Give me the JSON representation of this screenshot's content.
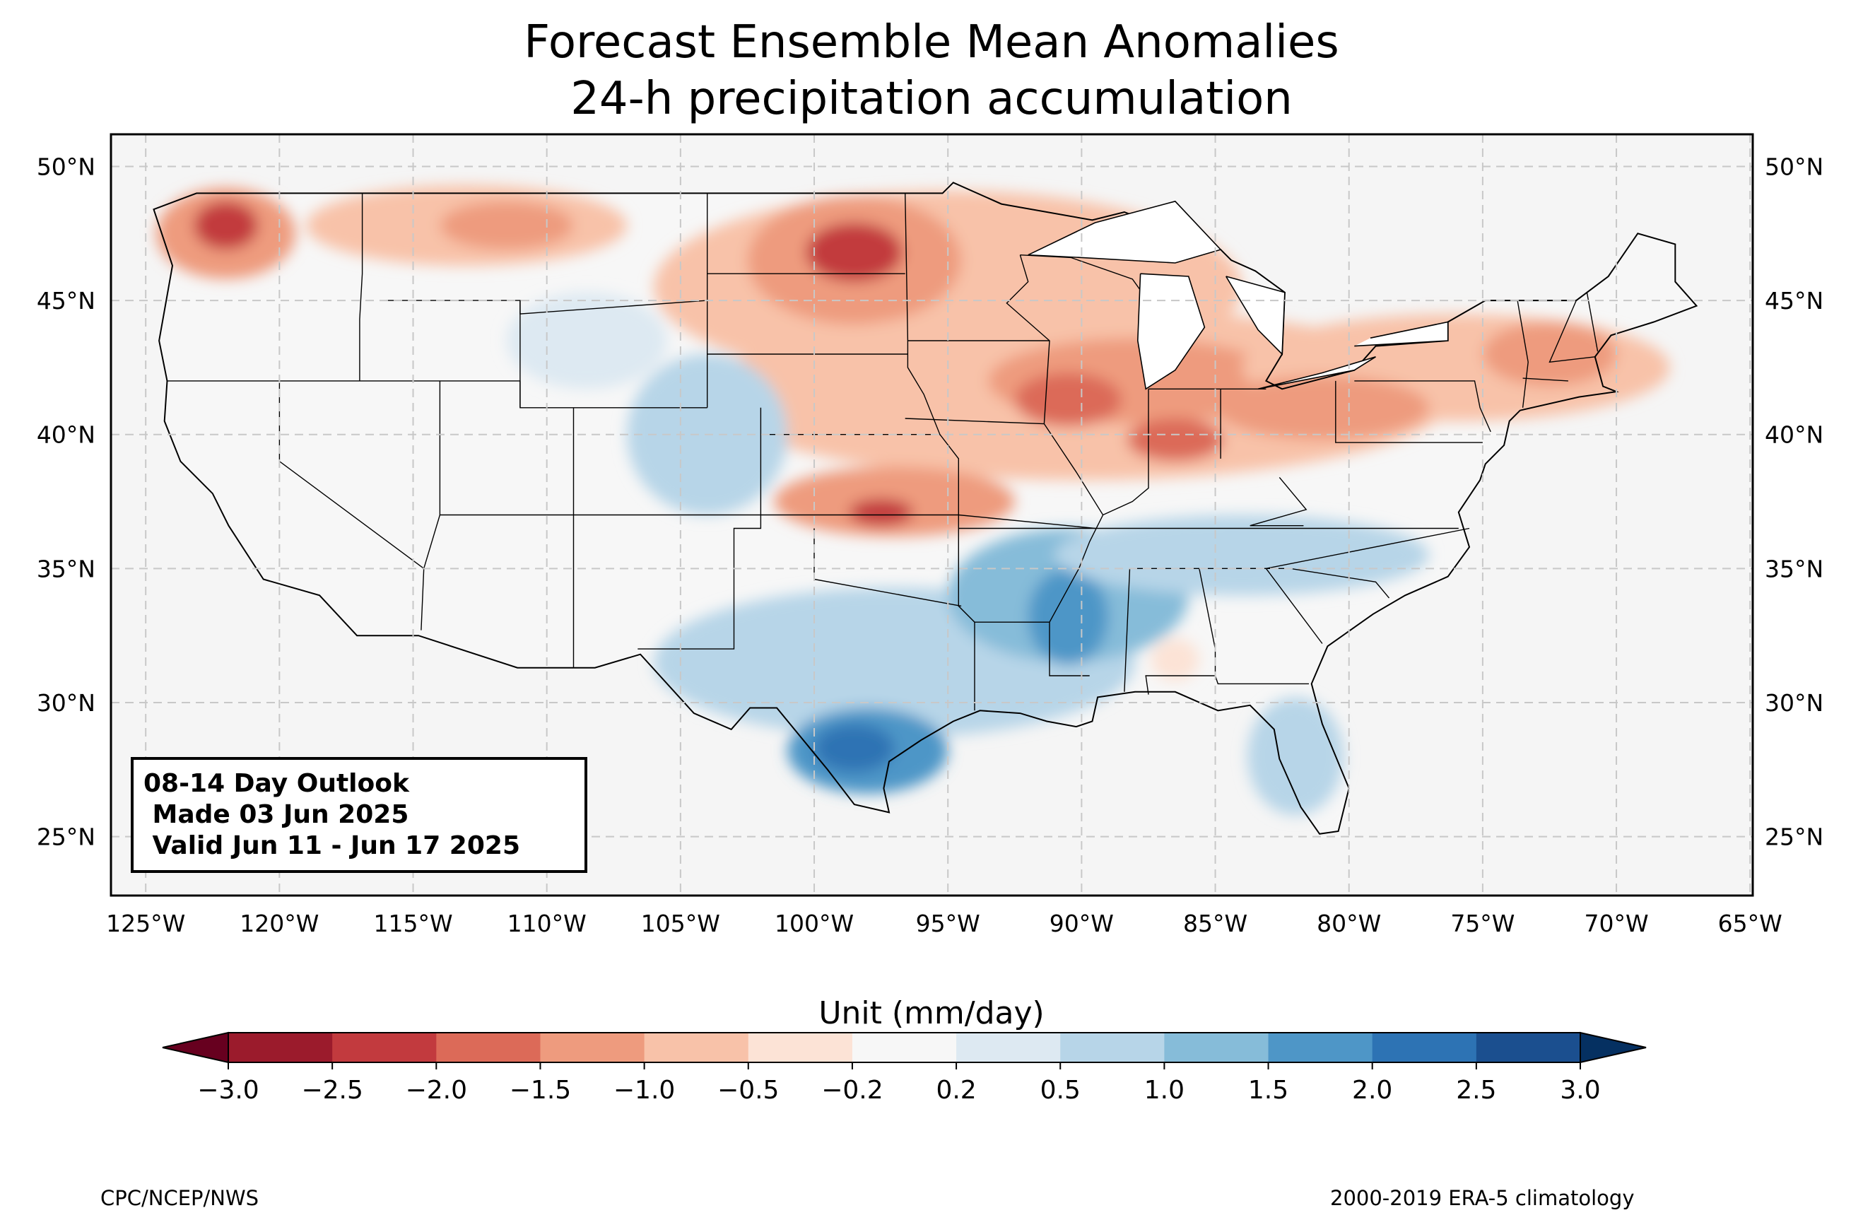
{
  "title": {
    "line1": "Forecast Ensemble Mean Anomalies",
    "line2": "24-h precipitation accumulation"
  },
  "map": {
    "lon_range": [
      -126.3,
      -64.9
    ],
    "lat_range": [
      22.8,
      51.2
    ],
    "lon_ticks": [
      "125°W",
      "120°W",
      "115°W",
      "110°W",
      "105°W",
      "100°W",
      "95°W",
      "90°W",
      "85°W",
      "80°W",
      "75°W",
      "70°W",
      "65°W"
    ],
    "lat_ticks": [
      "25°N",
      "30°N",
      "35°N",
      "40°N",
      "45°N",
      "50°N"
    ],
    "land_color": "#f5f5f5",
    "gridlines": true
  },
  "infobox": {
    "line1": "08-14 Day Outlook",
    "line2": " Made 03 Jun 2025",
    "line3": " Valid Jun 11 - Jun 17 2025"
  },
  "colorbar": {
    "label": "Unit (mm/day)",
    "ticks": [
      "−3.0",
      "−2.5",
      "−2.0",
      "−1.5",
      "−1.0",
      "−0.5",
      "−0.2",
      "0.2",
      "0.5",
      "1.0",
      "1.5",
      "2.0",
      "2.5",
      "3.0"
    ],
    "colors": [
      "#9b1b2c",
      "#c23a3e",
      "#dc6a58",
      "#ee9b7e",
      "#f8c2a9",
      "#fce3d6",
      "#f7f7f7",
      "#dde9f2",
      "#b7d5e8",
      "#86bcd9",
      "#4e96c7",
      "#2d73b4",
      "#1b4f8f"
    ],
    "extend_low": "#67001f",
    "extend_high": "#053061"
  },
  "footer": {
    "left": "CPC/NCEP/NWS",
    "right": "2000-2019 ERA-5 climatology"
  },
  "anomaly_regions": [
    {
      "lon": -122.0,
      "lat": 47.5,
      "rx": 2.6,
      "ry": 1.7,
      "level": -1.2
    },
    {
      "lon": -122.0,
      "lat": 47.8,
      "rx": 1.2,
      "ry": 0.9,
      "level": -2.2
    },
    {
      "lon": -113.0,
      "lat": 47.8,
      "rx": 6.0,
      "ry": 1.5,
      "level": -0.7
    },
    {
      "lon": -111.5,
      "lat": 47.8,
      "rx": 2.5,
      "ry": 0.9,
      "level": -1.2
    },
    {
      "lon": -95.0,
      "lat": 45.5,
      "rx": 11.0,
      "ry": 3.6,
      "level": -0.7
    },
    {
      "lon": -98.5,
      "lat": 46.5,
      "rx": 4.0,
      "ry": 2.4,
      "level": -1.3
    },
    {
      "lon": -98.5,
      "lat": 46.8,
      "rx": 1.8,
      "ry": 1.1,
      "level": -2.3
    },
    {
      "lon": -90.0,
      "lat": 41.5,
      "rx": 14.0,
      "ry": 3.2,
      "level": -0.7
    },
    {
      "lon": -88.0,
      "lat": 42.0,
      "rx": 5.5,
      "ry": 1.6,
      "level": -1.2
    },
    {
      "lon": -90.5,
      "lat": 41.3,
      "rx": 2.0,
      "ry": 1.0,
      "level": -1.7
    },
    {
      "lon": -86.5,
      "lat": 39.8,
      "rx": 1.8,
      "ry": 0.8,
      "level": -1.8
    },
    {
      "lon": -97.0,
      "lat": 37.5,
      "rx": 4.5,
      "ry": 1.3,
      "level": -1.3
    },
    {
      "lon": -97.5,
      "lat": 37.1,
      "rx": 1.2,
      "ry": 0.5,
      "level": -2.2
    },
    {
      "lon": -76.0,
      "lat": 42.5,
      "rx": 8.0,
      "ry": 2.0,
      "level": -0.7
    },
    {
      "lon": -72.5,
      "lat": 43.0,
      "rx": 2.5,
      "ry": 1.2,
      "level": -1.2
    },
    {
      "lon": -81.0,
      "lat": 41.0,
      "rx": 4.0,
      "ry": 1.2,
      "level": -1.1
    },
    {
      "lon": -104.0,
      "lat": 40.0,
      "rx": 3.0,
      "ry": 3.0,
      "level": 0.6
    },
    {
      "lon": -108.5,
      "lat": 43.5,
      "rx": 3.0,
      "ry": 1.8,
      "level": 0.35
    },
    {
      "lon": -97.0,
      "lat": 31.5,
      "rx": 9.0,
      "ry": 2.8,
      "level": 0.9
    },
    {
      "lon": -98.0,
      "lat": 28.2,
      "rx": 3.0,
      "ry": 1.6,
      "level": 1.6
    },
    {
      "lon": -98.5,
      "lat": 28.3,
      "rx": 1.5,
      "ry": 0.9,
      "level": 2.2
    },
    {
      "lon": -90.5,
      "lat": 34.0,
      "rx": 4.5,
      "ry": 2.5,
      "level": 1.2
    },
    {
      "lon": -90.5,
      "lat": 33.2,
      "rx": 1.5,
      "ry": 1.8,
      "level": 1.6
    },
    {
      "lon": -84.0,
      "lat": 35.5,
      "rx": 7.0,
      "ry": 1.5,
      "level": 0.6
    },
    {
      "lon": -82.0,
      "lat": 28.0,
      "rx": 1.8,
      "ry": 2.2,
      "level": 0.6
    },
    {
      "lon": -86.5,
      "lat": 31.6,
      "rx": 0.9,
      "ry": 0.8,
      "level": -0.4
    }
  ]
}
